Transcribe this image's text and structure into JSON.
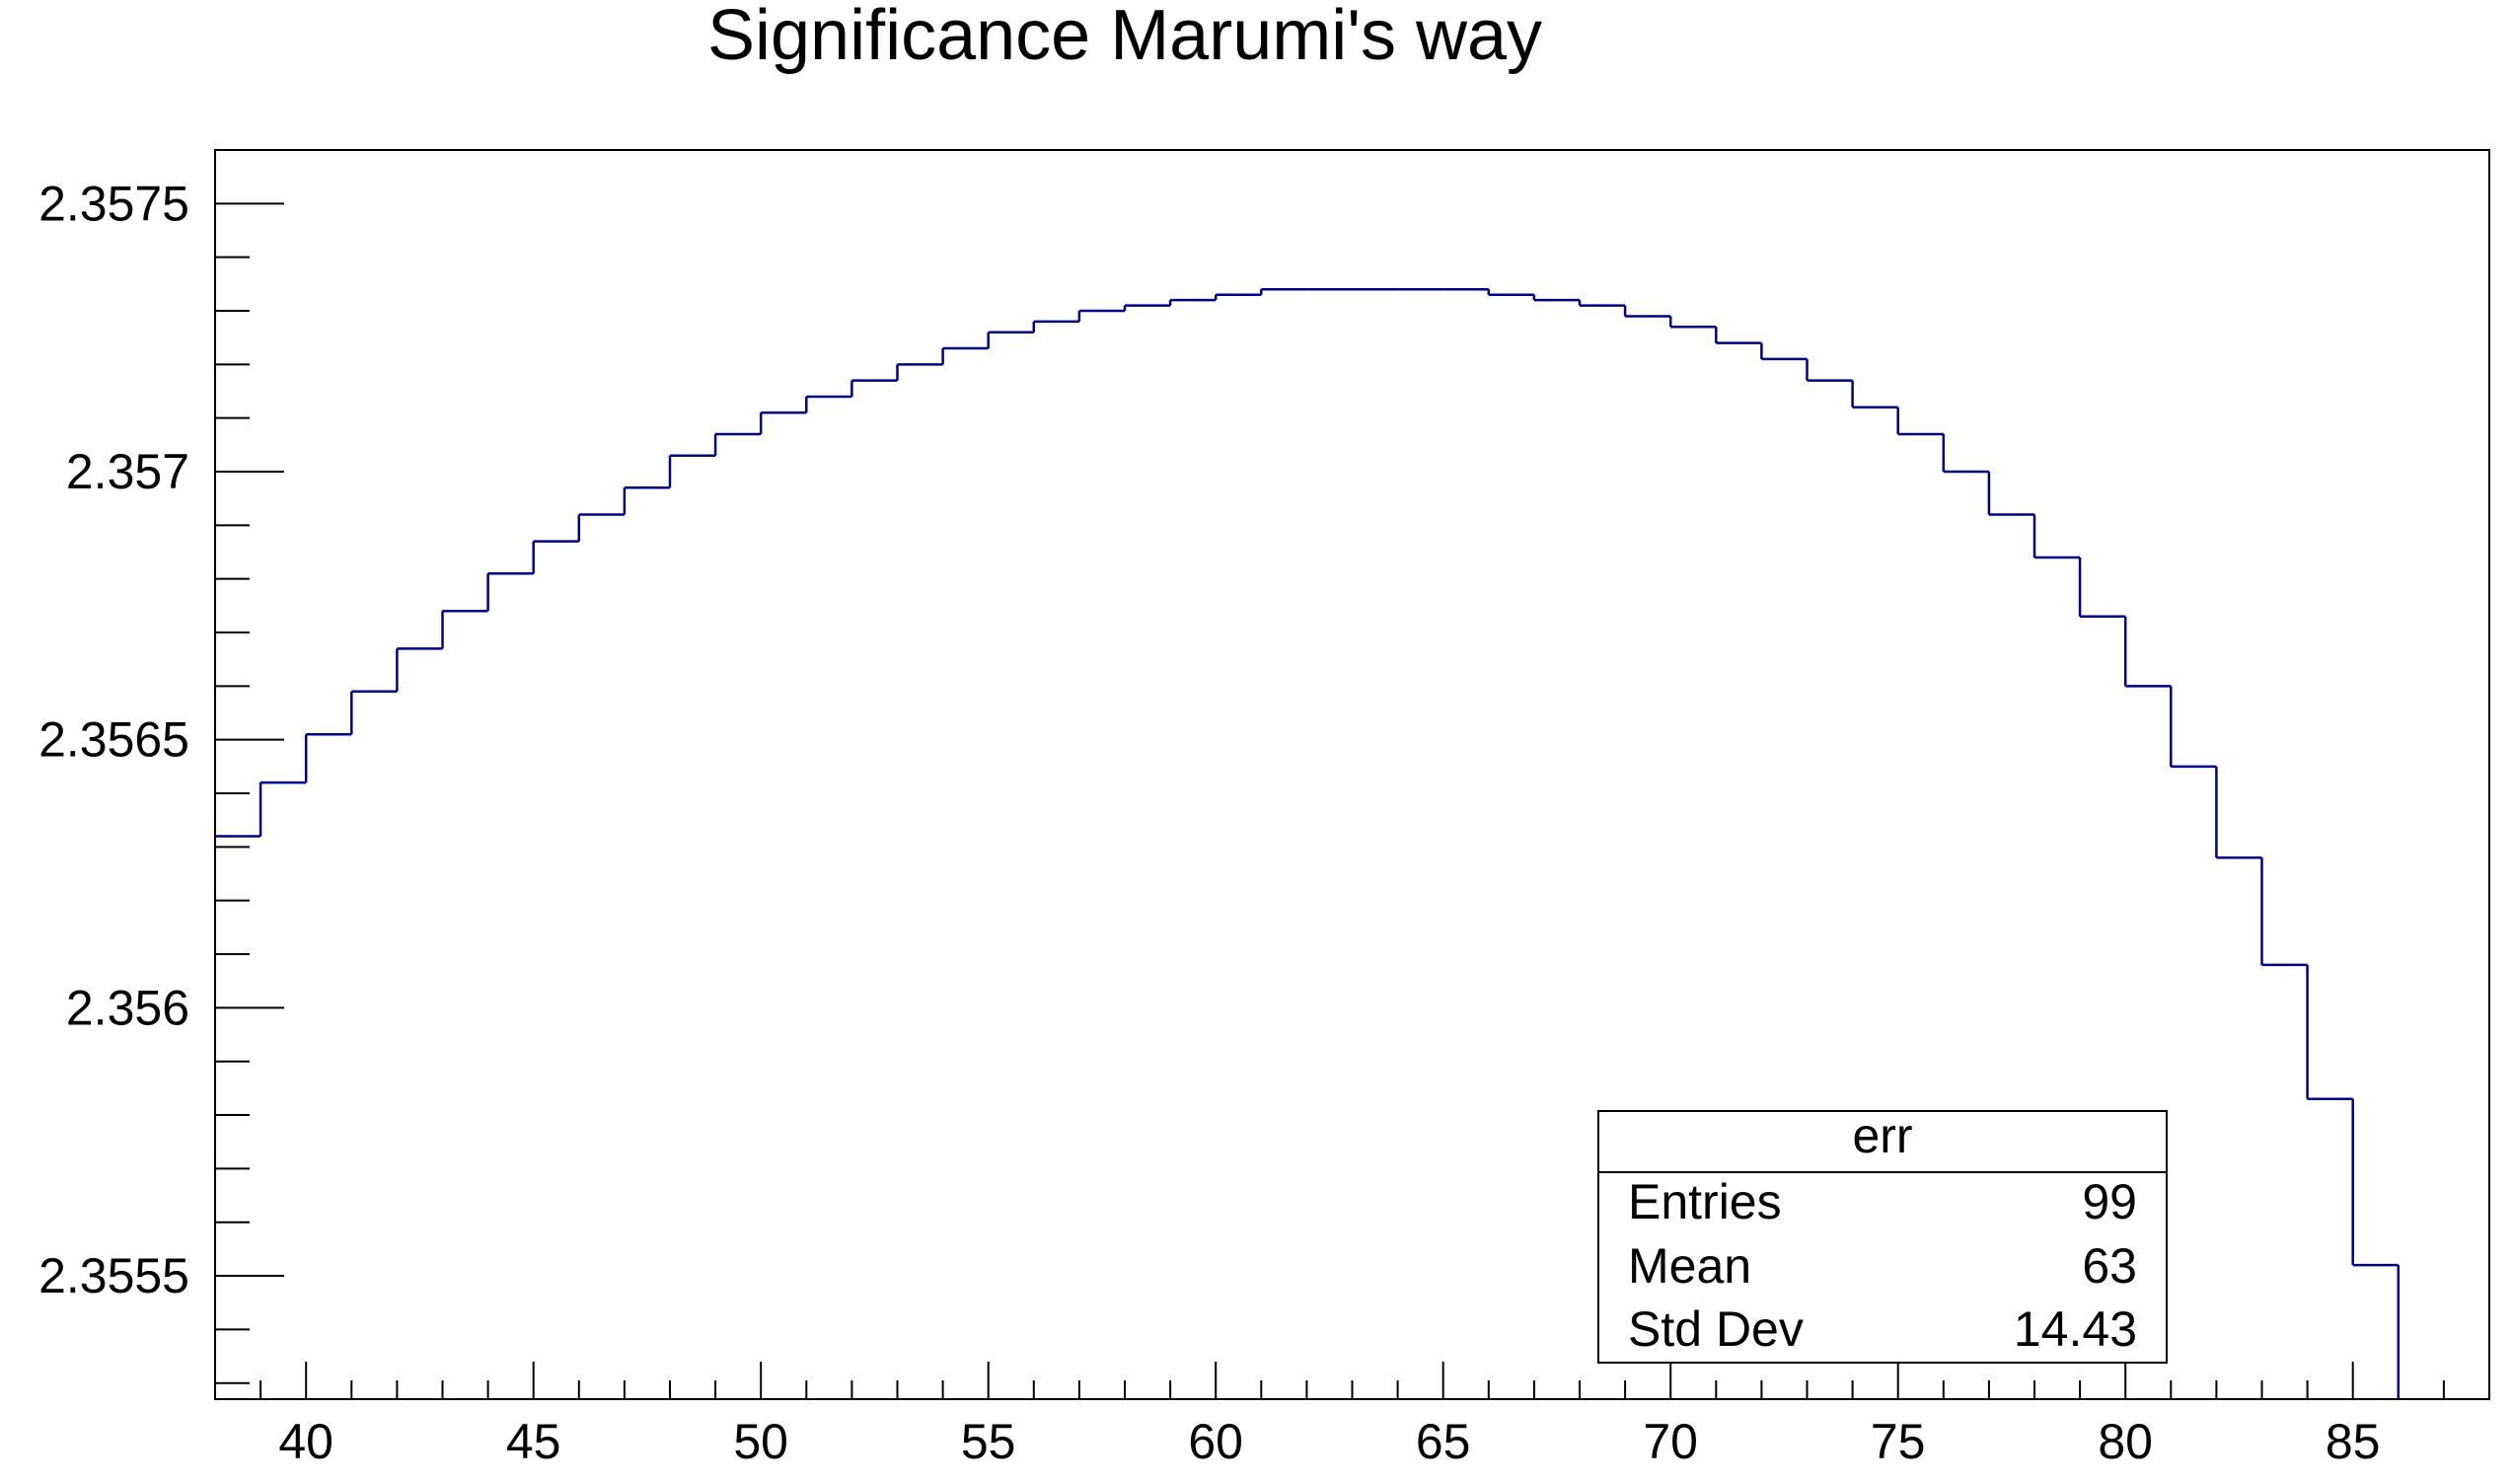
{
  "chart_data": {
    "type": "histogram",
    "title": "Significance Marumi's way",
    "xlabel": "",
    "ylabel": "",
    "xlim": [
      38,
      88
    ],
    "ylim": [
      2.35527,
      2.3576
    ],
    "x_ticks": [
      "40",
      "45",
      "50",
      "55",
      "60",
      "65",
      "70",
      "75",
      "80",
      "85"
    ],
    "y_ticks": [
      "2.3555",
      "2.356",
      "2.3565",
      "2.357",
      "2.3575"
    ],
    "bin_edges": [
      38,
      39,
      40,
      41,
      42,
      43,
      44,
      45,
      46,
      47,
      48,
      49,
      50,
      51,
      52,
      53,
      54,
      55,
      56,
      57,
      58,
      59,
      60,
      61,
      62,
      63,
      64,
      65,
      66,
      67,
      68,
      69,
      70,
      71,
      72,
      73,
      74,
      75,
      76,
      77,
      78,
      79,
      80,
      81,
      82,
      83,
      84,
      85
    ],
    "values": [
      2.35632,
      2.35642,
      2.35651,
      2.35659,
      2.35667,
      2.35674,
      2.35681,
      2.35687,
      2.35692,
      2.35697,
      2.35703,
      2.35707,
      2.35711,
      2.35714,
      2.35717,
      2.3572,
      2.35723,
      2.35726,
      2.35728,
      2.3573,
      2.35731,
      2.35732,
      2.35733,
      2.35734,
      2.35734,
      2.35734,
      2.35734,
      2.35734,
      2.35733,
      2.35732,
      2.35731,
      2.35729,
      2.35727,
      2.35724,
      2.35721,
      2.35717,
      2.35712,
      2.35707,
      2.357,
      2.35692,
      2.35684,
      2.35673,
      2.3566,
      2.35645,
      2.35628,
      2.35608,
      2.35583,
      2.35552
    ],
    "line_color": "#000080",
    "grid": false,
    "stats_box": {
      "name": "err",
      "rows": [
        {
          "label": "Entries",
          "value": "99"
        },
        {
          "label": "Mean",
          "value": "63"
        },
        {
          "label": "Std Dev",
          "value": "14.43"
        }
      ],
      "placement": "bottom-right"
    }
  }
}
